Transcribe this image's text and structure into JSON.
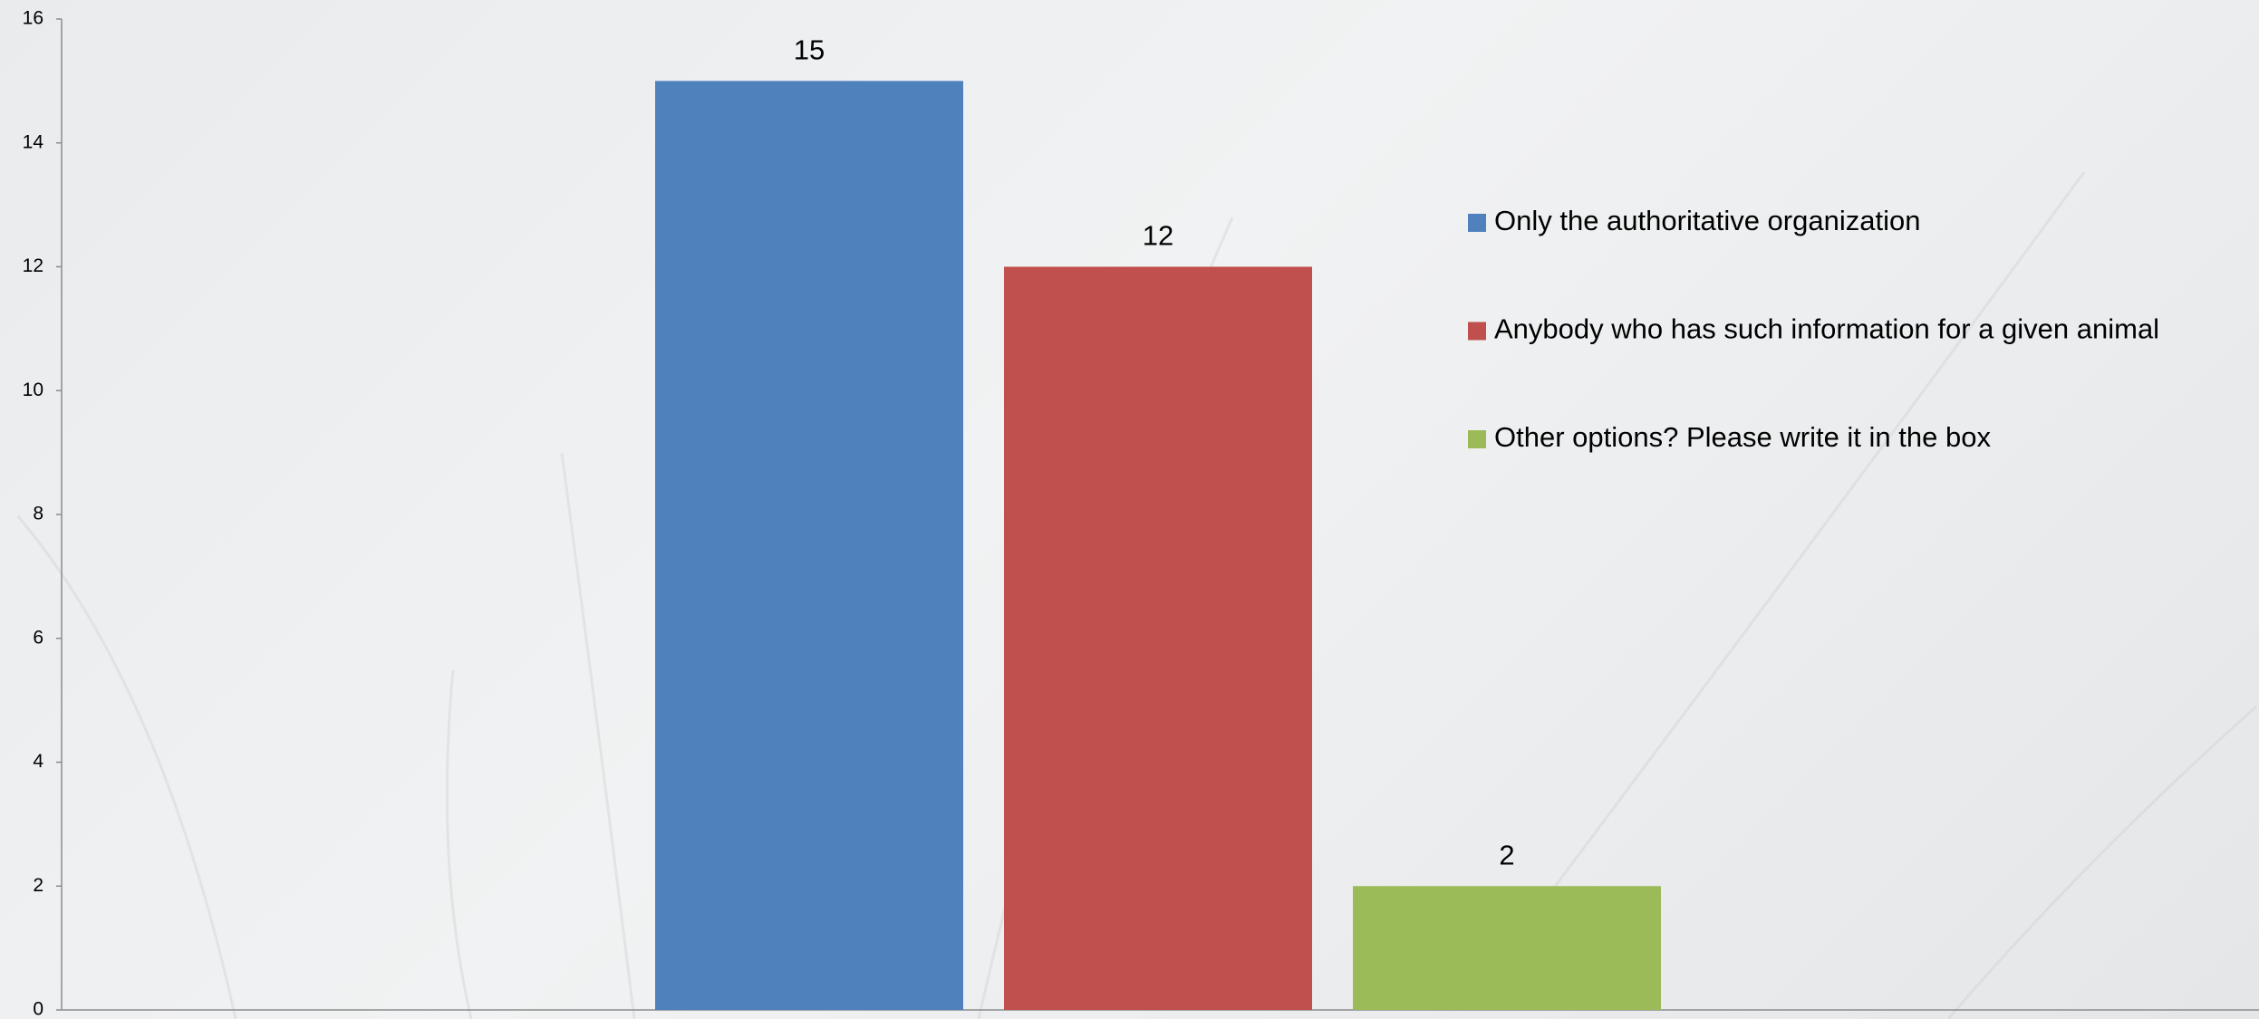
{
  "chart_data": {
    "type": "bar",
    "categories": [
      null
    ],
    "series": [
      {
        "name": "Only the authoritative organization",
        "color": "#4f81bd",
        "values": [
          15
        ]
      },
      {
        "name": "Anybody who has such information for a given animal",
        "color": "#c0504d",
        "values": [
          12
        ]
      },
      {
        "name": "Other options? Please write it in the box",
        "color": "#9bbb59",
        "values": [
          2
        ]
      }
    ],
    "ylim": [
      0,
      16
    ],
    "yticks": [
      0,
      2,
      4,
      6,
      8,
      10,
      12,
      14,
      16
    ],
    "grid": false,
    "legend": "right"
  }
}
